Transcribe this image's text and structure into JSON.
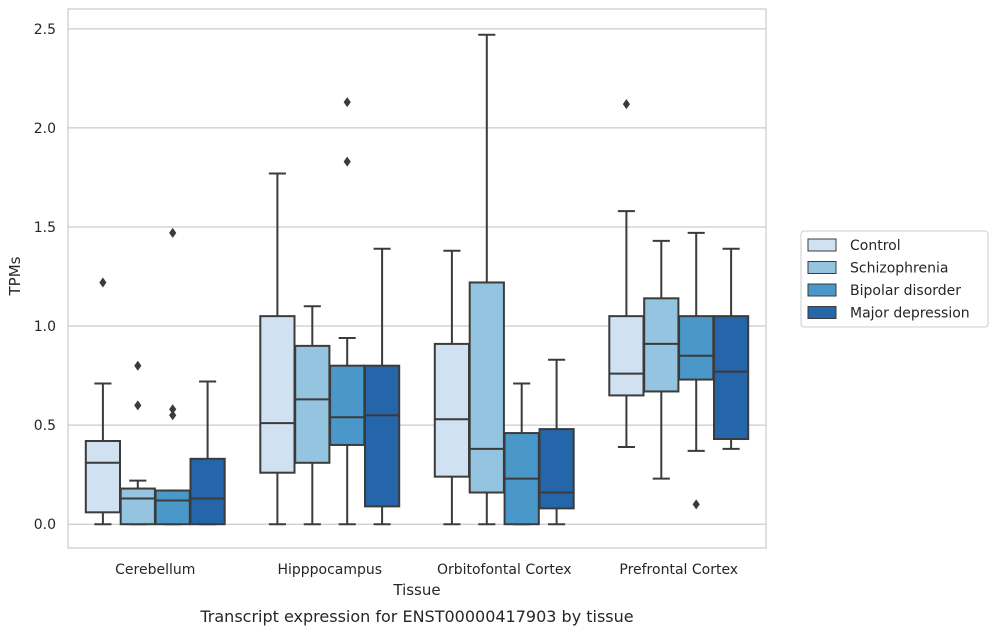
{
  "chart_data": {
    "type": "box",
    "xlabel": "Tissue",
    "ylabel": "TPMs",
    "caption": "Transcript expression for ENST00000417903 by tissue",
    "ylim": [
      -0.12,
      2.6
    ],
    "yticks": [
      0.0,
      0.5,
      1.0,
      1.5,
      2.0,
      2.5
    ],
    "ytick_labels": [
      "0.0",
      "0.5",
      "1.0",
      "1.5",
      "2.0",
      "2.5"
    ],
    "grid": "horizontal",
    "legend_position": "right",
    "categories": [
      "Cerebellum",
      "Hipppocampus",
      "Orbitofontal Cortex",
      "Prefrontal Cortex"
    ],
    "series": [
      {
        "name": "Control",
        "color": "#d0e1f2",
        "boxes": [
          {
            "whisker_low": 0.0,
            "q1": 0.06,
            "median": 0.31,
            "q3": 0.42,
            "whisker_high": 0.71,
            "outliers": [
              1.22
            ]
          },
          {
            "whisker_low": 0.0,
            "q1": 0.26,
            "median": 0.51,
            "q3": 1.05,
            "whisker_high": 1.77,
            "outliers": []
          },
          {
            "whisker_low": 0.0,
            "q1": 0.24,
            "median": 0.53,
            "q3": 0.91,
            "whisker_high": 1.38,
            "outliers": []
          },
          {
            "whisker_low": 0.39,
            "q1": 0.65,
            "median": 0.76,
            "q3": 1.05,
            "whisker_high": 1.58,
            "outliers": [
              2.12
            ]
          }
        ]
      },
      {
        "name": "Schizophrenia",
        "color": "#94c4df",
        "boxes": [
          {
            "whisker_low": 0.0,
            "q1": 0.0,
            "median": 0.13,
            "q3": 0.18,
            "whisker_high": 0.22,
            "outliers": [
              0.8,
              0.6
            ]
          },
          {
            "whisker_low": 0.0,
            "q1": 0.31,
            "median": 0.63,
            "q3": 0.9,
            "whisker_high": 1.1,
            "outliers": []
          },
          {
            "whisker_low": 0.0,
            "q1": 0.16,
            "median": 0.38,
            "q3": 1.22,
            "whisker_high": 2.47,
            "outliers": []
          },
          {
            "whisker_low": 0.23,
            "q1": 0.67,
            "median": 0.91,
            "q3": 1.14,
            "whisker_high": 1.43,
            "outliers": []
          }
        ]
      },
      {
        "name": "Bipolar disorder",
        "color": "#4a98c9",
        "boxes": [
          {
            "whisker_low": 0.0,
            "q1": 0.0,
            "median": 0.12,
            "q3": 0.17,
            "whisker_high": 0.17,
            "outliers": [
              1.47,
              0.58,
              0.55
            ]
          },
          {
            "whisker_low": 0.0,
            "q1": 0.4,
            "median": 0.54,
            "q3": 0.8,
            "whisker_high": 0.94,
            "outliers": [
              2.13,
              1.83
            ]
          },
          {
            "whisker_low": 0.0,
            "q1": 0.0,
            "median": 0.23,
            "q3": 0.46,
            "whisker_high": 0.71,
            "outliers": []
          },
          {
            "whisker_low": 0.37,
            "q1": 0.73,
            "median": 0.85,
            "q3": 1.05,
            "whisker_high": 1.47,
            "outliers": [
              0.1
            ]
          }
        ]
      },
      {
        "name": "Major depression",
        "color": "#2565a9",
        "boxes": [
          {
            "whisker_low": 0.0,
            "q1": 0.0,
            "median": 0.13,
            "q3": 0.33,
            "whisker_high": 0.72,
            "outliers": []
          },
          {
            "whisker_low": 0.0,
            "q1": 0.09,
            "median": 0.55,
            "q3": 0.8,
            "whisker_high": 1.39,
            "outliers": []
          },
          {
            "whisker_low": 0.0,
            "q1": 0.08,
            "median": 0.16,
            "q3": 0.48,
            "whisker_high": 0.83,
            "outliers": []
          },
          {
            "whisker_low": 0.38,
            "q1": 0.43,
            "median": 0.77,
            "q3": 1.05,
            "whisker_high": 1.39,
            "outliers": []
          }
        ]
      }
    ]
  },
  "colors": {
    "line": "#3b3b3b",
    "grid": "#cccccc",
    "spine": "#cccccc",
    "text": "#262626"
  }
}
